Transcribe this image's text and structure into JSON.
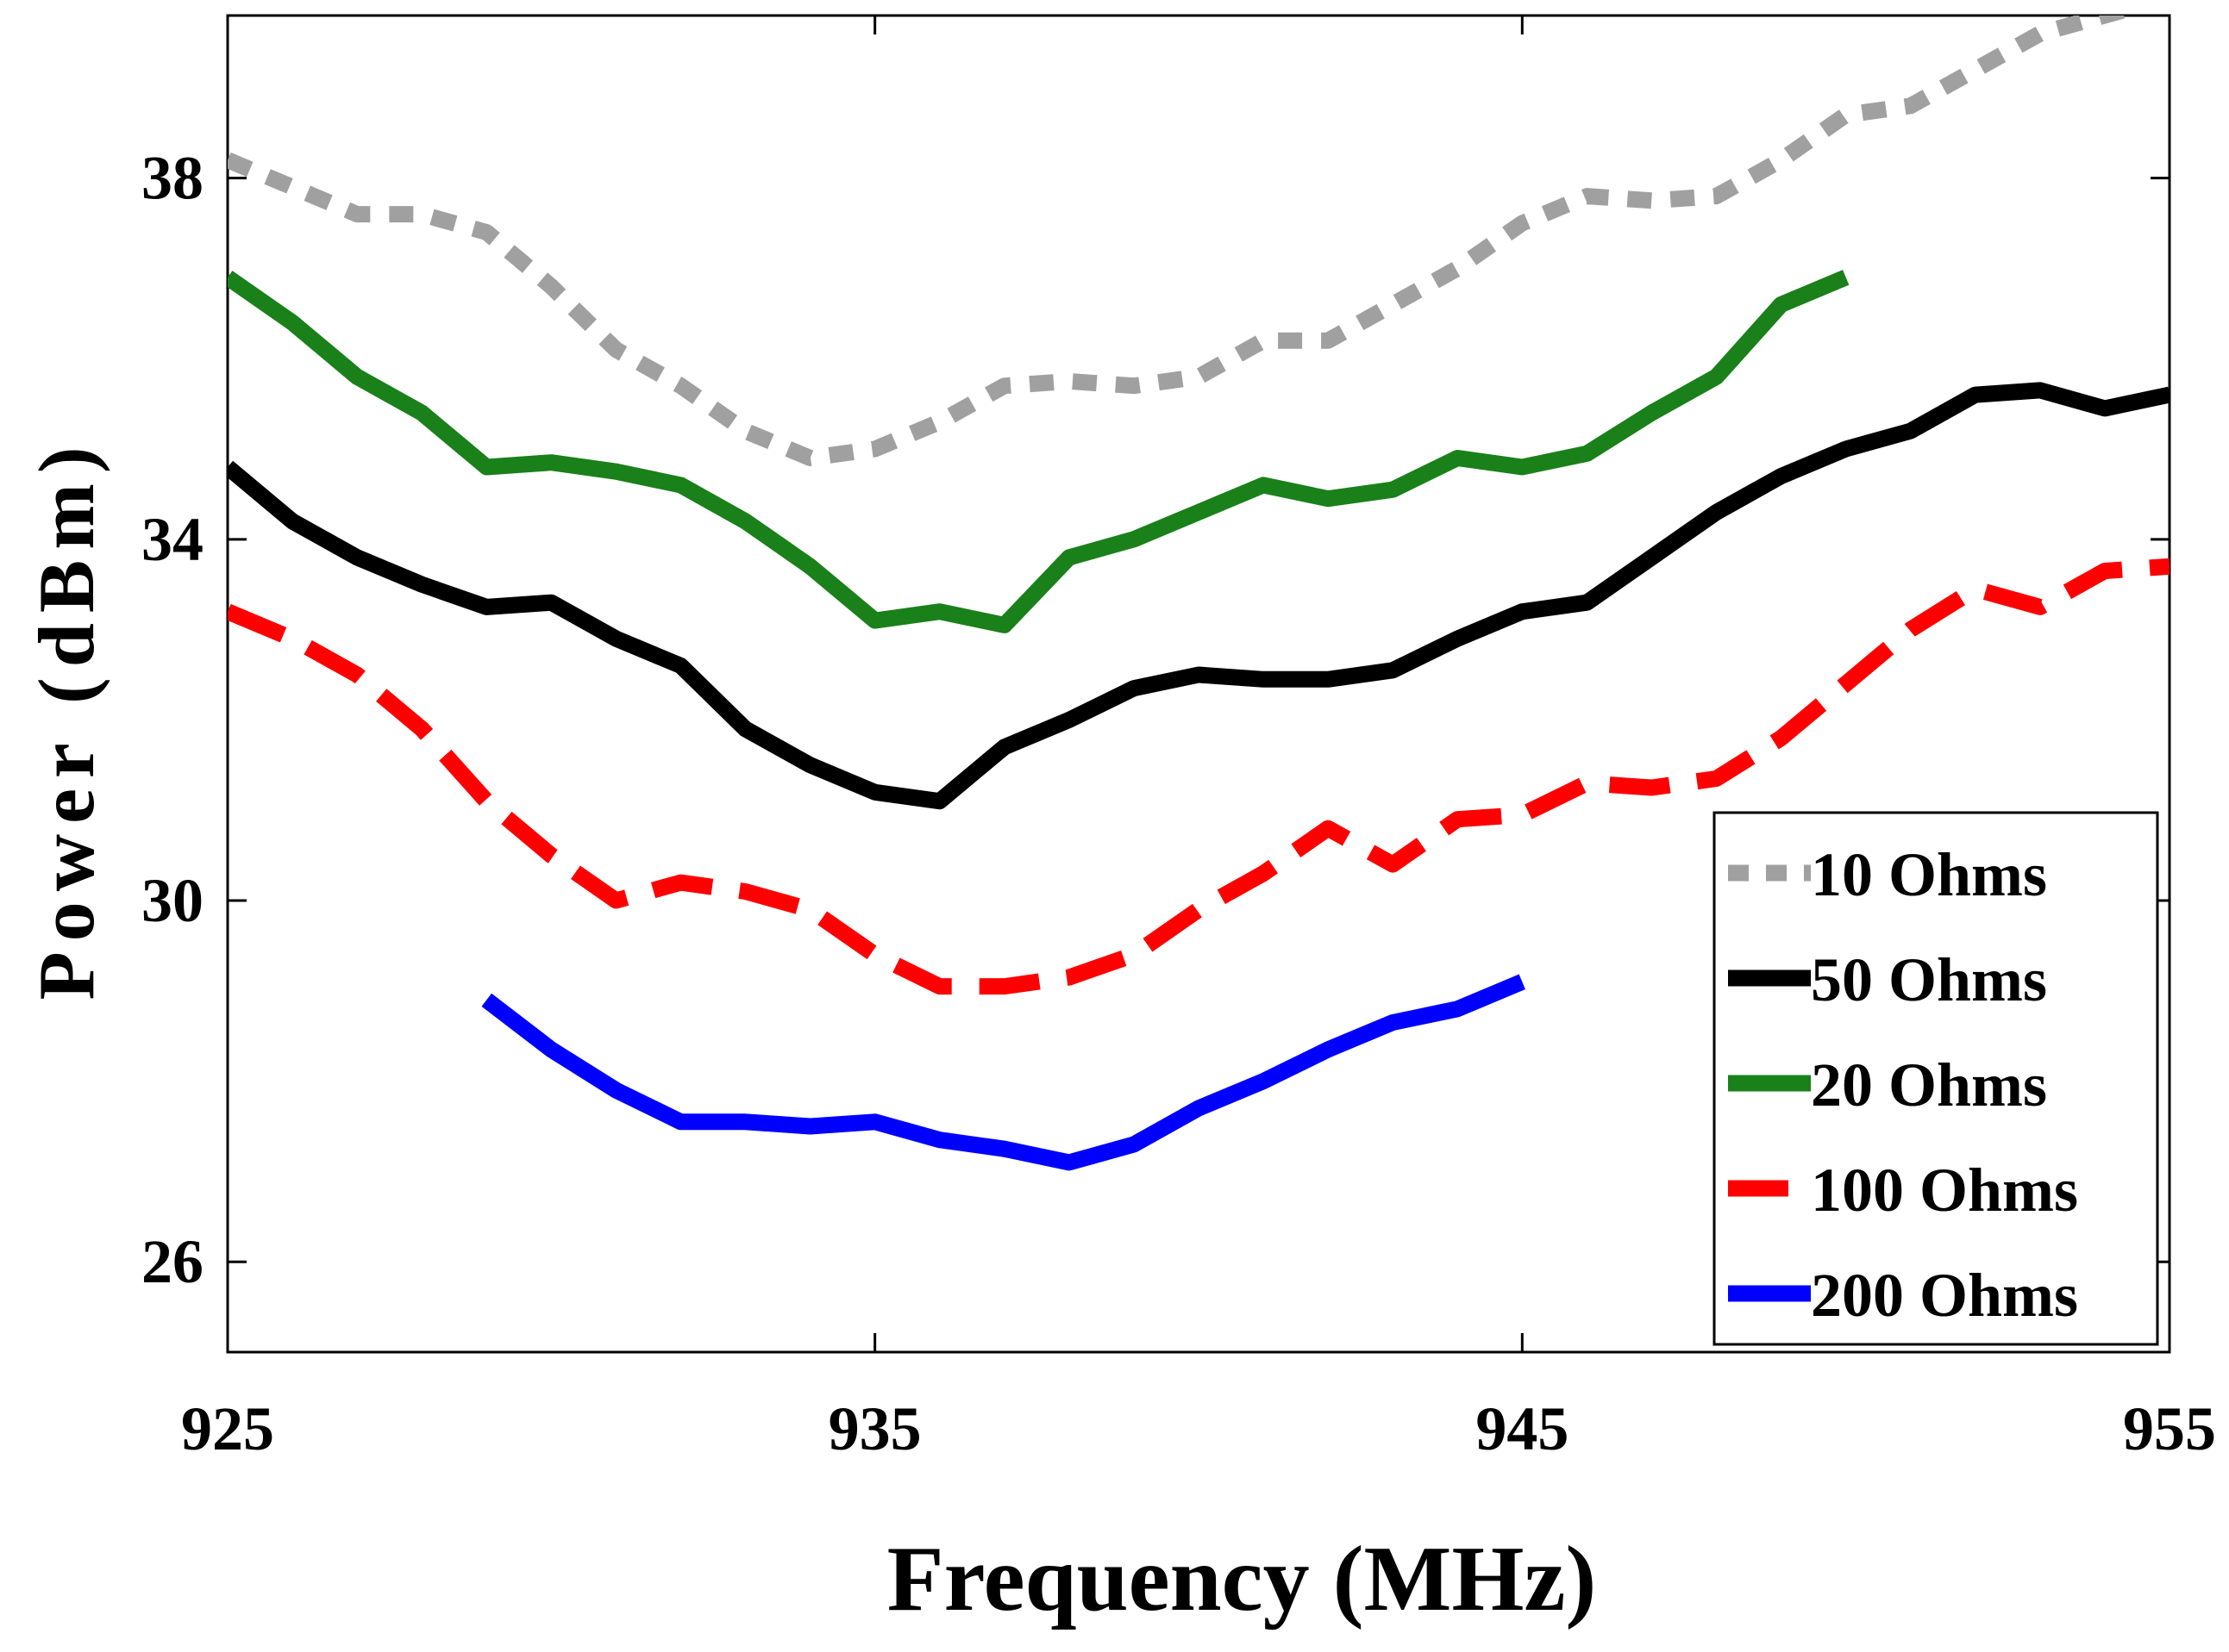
{
  "chart_data": {
    "type": "line",
    "xlabel": "Frequency (MHz)",
    "ylabel": "Power (dBm)",
    "xlim": [
      925,
      955
    ],
    "ylim": [
      25,
      39.8
    ],
    "xticks": [
      "925",
      "935",
      "945",
      "955"
    ],
    "yticks": [
      "26",
      "30",
      "34",
      "38"
    ],
    "grid": false,
    "legend_position": "bottom-right",
    "series": [
      {
        "name": "10 Ohms",
        "color": "#a0a0a0",
        "style": "dotted",
        "x": [
          925,
          926,
          927,
          928,
          929,
          930,
          931,
          932,
          933,
          934,
          935,
          936,
          937,
          938,
          939,
          940,
          941,
          942,
          943,
          944,
          945,
          946,
          947,
          948,
          949,
          950,
          951,
          952,
          953,
          954,
          955
        ],
        "y": [
          38.2,
          37.9,
          37.6,
          37.6,
          37.4,
          36.8,
          36.1,
          35.7,
          35.2,
          34.9,
          35.0,
          35.3,
          35.7,
          35.75,
          35.7,
          35.8,
          36.2,
          36.2,
          36.6,
          37.0,
          37.5,
          37.8,
          37.75,
          37.8,
          38.2,
          38.7,
          38.8,
          39.2,
          39.6,
          39.8,
          40.0
        ]
      },
      {
        "name": "50 Ohms",
        "color": "#000000",
        "style": "solid",
        "x": [
          925,
          926,
          927,
          928,
          929,
          930,
          931,
          932,
          933,
          934,
          935,
          936,
          937,
          938,
          939,
          940,
          941,
          942,
          943,
          944,
          945,
          946,
          947,
          948,
          949,
          950,
          951,
          952,
          953,
          954,
          955
        ],
        "y": [
          34.8,
          34.2,
          33.8,
          33.5,
          33.25,
          33.3,
          32.9,
          32.6,
          31.9,
          31.5,
          31.2,
          31.1,
          31.7,
          32.0,
          32.35,
          32.5,
          32.45,
          32.45,
          32.55,
          32.9,
          33.2,
          33.3,
          33.8,
          34.3,
          34.7,
          35.0,
          35.2,
          35.6,
          35.65,
          35.45,
          35.6
        ]
      },
      {
        "name": "20 Ohms",
        "color": "#1a801a",
        "style": "solid",
        "x": [
          925,
          926,
          927,
          928,
          929,
          930,
          931,
          932,
          933,
          934,
          935,
          936,
          937,
          938,
          939,
          940,
          941,
          942,
          943,
          944,
          945,
          946,
          947,
          948,
          949,
          950
        ],
        "y": [
          36.9,
          36.4,
          35.8,
          35.4,
          34.8,
          34.85,
          34.75,
          34.6,
          34.2,
          33.7,
          33.1,
          33.2,
          33.05,
          33.8,
          34.0,
          34.3,
          34.6,
          34.45,
          34.55,
          34.9,
          34.8,
          34.95,
          35.4,
          35.8,
          36.6,
          36.9
        ]
      },
      {
        "name": "100 Ohms",
        "color": "#ff0000",
        "style": "dashed",
        "x": [
          925,
          926,
          927,
          928,
          929,
          930,
          931,
          932,
          933,
          934,
          935,
          936,
          937,
          938,
          939,
          940,
          941,
          942,
          943,
          944,
          945,
          946,
          947,
          948,
          949,
          950,
          951,
          952,
          953,
          954,
          955
        ],
        "y": [
          33.2,
          32.9,
          32.5,
          31.9,
          31.1,
          30.5,
          30.0,
          30.2,
          30.1,
          29.9,
          29.4,
          29.05,
          29.05,
          29.15,
          29.4,
          29.9,
          30.3,
          30.8,
          30.4,
          30.9,
          30.95,
          31.3,
          31.25,
          31.35,
          31.8,
          32.4,
          33.0,
          33.45,
          33.25,
          33.65,
          33.7
        ]
      },
      {
        "name": "200 Ohms",
        "color": "#0000ff",
        "style": "solid",
        "x": [
          929,
          930,
          931,
          932,
          933,
          934,
          935,
          936,
          937,
          938,
          939,
          940,
          941,
          942,
          943,
          944,
          945
        ],
        "y": [
          28.9,
          28.35,
          27.9,
          27.55,
          27.55,
          27.5,
          27.55,
          27.35,
          27.25,
          27.1,
          27.3,
          27.7,
          28.0,
          28.35,
          28.65,
          28.8,
          29.1
        ]
      }
    ]
  }
}
